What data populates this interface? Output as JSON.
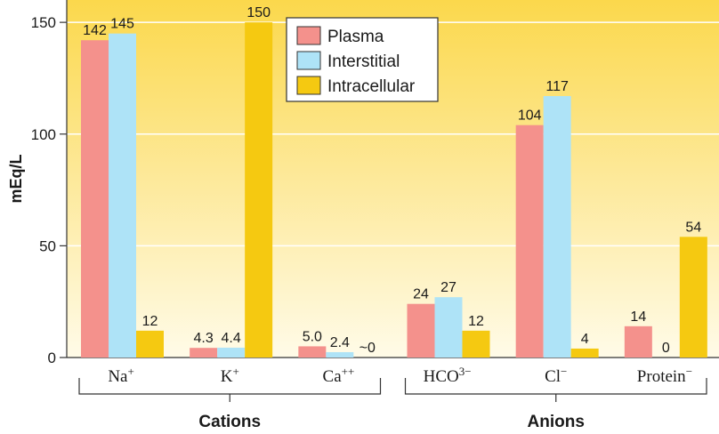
{
  "chart_data": {
    "type": "bar",
    "title": "",
    "xlabel": "",
    "ylabel": "mEq/L",
    "ylim": [
      0,
      160
    ],
    "yticks": [
      0,
      50,
      100,
      150
    ],
    "grid": true,
    "legend_position": "top-center",
    "categories": [
      {
        "base": "Na",
        "sup": "+"
      },
      {
        "base": "K",
        "sup": "+"
      },
      {
        "base": "Ca",
        "sup": "++"
      },
      {
        "base": "HCO",
        "sup": "3−"
      },
      {
        "base": "Cl",
        "sup": "−"
      },
      {
        "base": "Protein",
        "sup": "−"
      }
    ],
    "series": [
      {
        "name": "Plasma",
        "color": "#f4918c",
        "values": [
          142,
          4.3,
          5.0,
          24,
          104,
          14
        ],
        "labels": [
          "142",
          "4.3",
          "5.0",
          "24",
          "104",
          "14"
        ]
      },
      {
        "name": "Interstitial",
        "color": "#aee3f7",
        "values": [
          145,
          4.4,
          2.4,
          27,
          117,
          0
        ],
        "labels": [
          "145",
          "4.4",
          "2.4",
          "27",
          "117",
          ""
        ]
      },
      {
        "name": "Intracellular",
        "color": "#f5c911",
        "values": [
          12,
          150,
          0,
          12,
          4,
          54
        ],
        "labels": [
          "12",
          "150",
          "~0",
          "12",
          "4",
          "54"
        ]
      }
    ],
    "extra_labels": [
      {
        "category_index": 5,
        "text": "0"
      }
    ],
    "groups": [
      {
        "label": "Cations",
        "categories": [
          0,
          1,
          2
        ]
      },
      {
        "label": "Anions",
        "categories": [
          3,
          4,
          5
        ]
      }
    ]
  }
}
